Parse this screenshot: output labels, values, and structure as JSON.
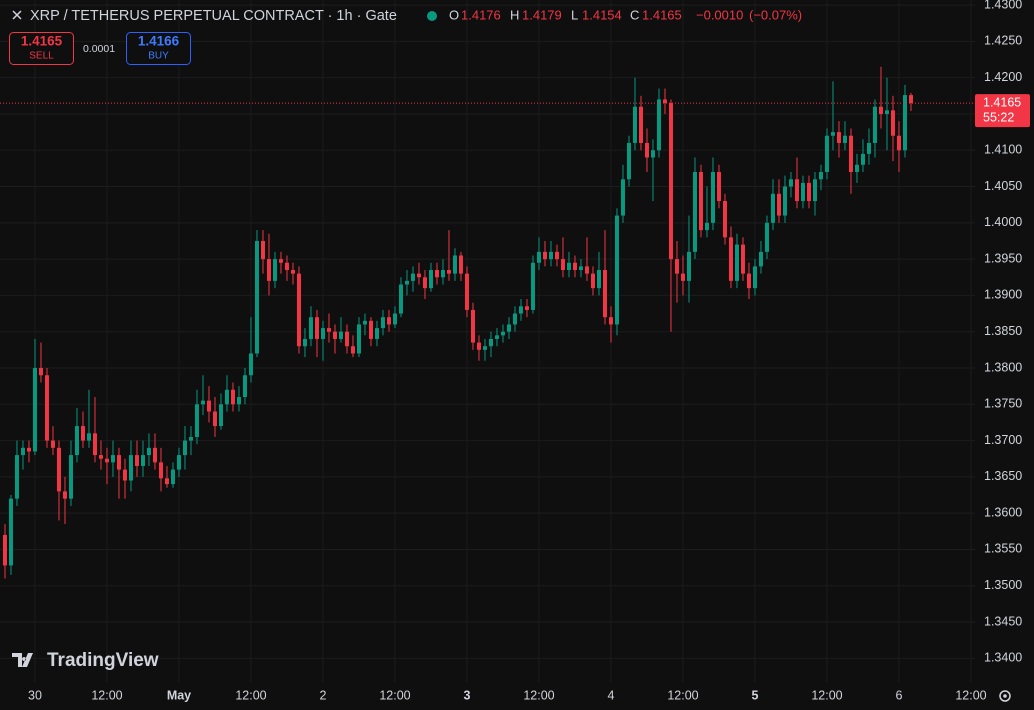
{
  "chart_data": {
    "type": "candlestick",
    "title": "XRP / TETHERUS PERPETUAL CONTRACT · 1h · Gate",
    "ohlc_labels": [
      "O",
      "H",
      "L",
      "C"
    ],
    "change": {
      "value": -0.001,
      "label": "−0.0010"
    },
    "change_percent": {
      "value": -0.07,
      "label": "(−0.07%)"
    },
    "sell": {
      "price": 1.4165,
      "label": "SELL"
    },
    "spread": 0.0001,
    "buy": {
      "price": 1.4166,
      "label": "BUY"
    },
    "countdown": "55:22",
    "watermark": "TradingView",
    "up_color": "#089981",
    "down_color": "#f23645",
    "grid": true,
    "xlim": [
      -0.83,
      161.67
    ],
    "xticks": [
      {
        "value": 5,
        "label": "30"
      },
      {
        "value": 17,
        "label": "12:00"
      },
      {
        "value": 29,
        "label": "May"
      },
      {
        "value": 41,
        "label": "12:00"
      },
      {
        "value": 53,
        "label": "2"
      },
      {
        "value": 65,
        "label": "12:00"
      },
      {
        "value": 77,
        "label": "3"
      },
      {
        "value": 89,
        "label": "12:00"
      },
      {
        "value": 101,
        "label": "4"
      },
      {
        "value": 113,
        "label": "12:00"
      },
      {
        "value": 125,
        "label": "5"
      },
      {
        "value": 137,
        "label": "12:00"
      },
      {
        "value": 149,
        "label": "6"
      },
      {
        "value": 161,
        "label": "12:00"
      }
    ],
    "ylim": [
      1.3366,
      1.4307
    ],
    "yticks": [
      {
        "value": 1.43,
        "label": "1.4300"
      },
      {
        "value": 1.425,
        "label": "1.4250"
      },
      {
        "value": 1.42,
        "label": "1.4200"
      },
      {
        "value": 1.415,
        "label": "1.4150"
      },
      {
        "value": 1.41,
        "label": "1.4100"
      },
      {
        "value": 1.405,
        "label": "1.4050"
      },
      {
        "value": 1.4,
        "label": "1.4000"
      },
      {
        "value": 1.395,
        "label": "1.3950"
      },
      {
        "value": 1.39,
        "label": "1.3900"
      },
      {
        "value": 1.385,
        "label": "1.3850"
      },
      {
        "value": 1.38,
        "label": "1.3800"
      },
      {
        "value": 1.375,
        "label": "1.3750"
      },
      {
        "value": 1.37,
        "label": "1.3700"
      },
      {
        "value": 1.365,
        "label": "1.3650"
      },
      {
        "value": 1.36,
        "label": "1.3600"
      },
      {
        "value": 1.355,
        "label": "1.3550"
      },
      {
        "value": 1.35,
        "label": "1.3500"
      },
      {
        "value": 1.345,
        "label": "1.3450"
      },
      {
        "value": 1.34,
        "label": "1.3400"
      }
    ],
    "ohlc": [
      [
        1.357,
        1.3585,
        1.351,
        1.3528
      ],
      [
        1.3528,
        1.3625,
        1.3515,
        1.362
      ],
      [
        1.362,
        1.37,
        1.361,
        1.368
      ],
      [
        1.368,
        1.37,
        1.366,
        1.369
      ],
      [
        1.369,
        1.37,
        1.367,
        1.3685
      ],
      [
        1.3685,
        1.384,
        1.368,
        1.38
      ],
      [
        1.38,
        1.3835,
        1.378,
        1.379
      ],
      [
        1.379,
        1.38,
        1.369,
        1.37
      ],
      [
        1.37,
        1.372,
        1.368,
        1.369
      ],
      [
        1.369,
        1.37,
        1.359,
        1.363
      ],
      [
        1.363,
        1.365,
        1.3585,
        1.362
      ],
      [
        1.362,
        1.37,
        1.361,
        1.368
      ],
      [
        1.368,
        1.3745,
        1.367,
        1.372
      ],
      [
        1.372,
        1.374,
        1.369,
        1.37
      ],
      [
        1.37,
        1.377,
        1.369,
        1.371
      ],
      [
        1.371,
        1.376,
        1.367,
        1.368
      ],
      [
        1.368,
        1.37,
        1.366,
        1.3675
      ],
      [
        1.3675,
        1.369,
        1.364,
        1.367
      ],
      [
        1.367,
        1.37,
        1.365,
        1.368
      ],
      [
        1.368,
        1.369,
        1.362,
        1.366
      ],
      [
        1.366,
        1.3675,
        1.362,
        1.3645
      ],
      [
        1.3645,
        1.37,
        1.363,
        1.368
      ],
      [
        1.368,
        1.37,
        1.365,
        1.3665
      ],
      [
        1.3665,
        1.37,
        1.365,
        1.368
      ],
      [
        1.368,
        1.371,
        1.3665,
        1.369
      ],
      [
        1.369,
        1.371,
        1.366,
        1.367
      ],
      [
        1.367,
        1.369,
        1.363,
        1.3648
      ],
      [
        1.3648,
        1.3665,
        1.3635,
        1.364
      ],
      [
        1.364,
        1.367,
        1.3635,
        1.366
      ],
      [
        1.366,
        1.369,
        1.365,
        1.368
      ],
      [
        1.368,
        1.372,
        1.366,
        1.37
      ],
      [
        1.37,
        1.372,
        1.368,
        1.3705
      ],
      [
        1.3705,
        1.377,
        1.3695,
        1.375
      ],
      [
        1.375,
        1.379,
        1.3735,
        1.3755
      ],
      [
        1.3755,
        1.3775,
        1.3725,
        1.374
      ],
      [
        1.374,
        1.376,
        1.3705,
        1.372
      ],
      [
        1.372,
        1.3765,
        1.3715,
        1.375
      ],
      [
        1.375,
        1.379,
        1.374,
        1.377
      ],
      [
        1.377,
        1.378,
        1.374,
        1.375
      ],
      [
        1.375,
        1.3775,
        1.374,
        1.376
      ],
      [
        1.376,
        1.38,
        1.375,
        1.379
      ],
      [
        1.379,
        1.387,
        1.378,
        1.382
      ],
      [
        1.382,
        1.399,
        1.3815,
        1.3975
      ],
      [
        1.3975,
        1.399,
        1.393,
        1.395
      ],
      [
        1.395,
        1.3985,
        1.39,
        1.392
      ],
      [
        1.392,
        1.396,
        1.391,
        1.395
      ],
      [
        1.395,
        1.396,
        1.393,
        1.3945
      ],
      [
        1.3945,
        1.3955,
        1.392,
        1.3935
      ],
      [
        1.3935,
        1.3945,
        1.3915,
        1.393
      ],
      [
        1.393,
        1.394,
        1.382,
        1.383
      ],
      [
        1.383,
        1.3855,
        1.3815,
        1.384
      ],
      [
        1.384,
        1.3885,
        1.383,
        1.387
      ],
      [
        1.387,
        1.388,
        1.3815,
        1.384
      ],
      [
        1.384,
        1.3865,
        1.381,
        1.3855
      ],
      [
        1.3855,
        1.3875,
        1.3835,
        1.385
      ],
      [
        1.385,
        1.386,
        1.382,
        1.384
      ],
      [
        1.384,
        1.387,
        1.3835,
        1.385
      ],
      [
        1.385,
        1.386,
        1.382,
        1.383
      ],
      [
        1.383,
        1.3845,
        1.3815,
        1.382
      ],
      [
        1.382,
        1.387,
        1.3815,
        1.386
      ],
      [
        1.386,
        1.3875,
        1.3845,
        1.3865
      ],
      [
        1.3865,
        1.387,
        1.383,
        1.384
      ],
      [
        1.384,
        1.3865,
        1.383,
        1.3855
      ],
      [
        1.3855,
        1.388,
        1.3845,
        1.387
      ],
      [
        1.387,
        1.388,
        1.385,
        1.386
      ],
      [
        1.386,
        1.3885,
        1.3855,
        1.3875
      ],
      [
        1.3875,
        1.3925,
        1.387,
        1.3915
      ],
      [
        1.3915,
        1.3935,
        1.39,
        1.392
      ],
      [
        1.392,
        1.394,
        1.3905,
        1.393
      ],
      [
        1.393,
        1.3945,
        1.3915,
        1.3925
      ],
      [
        1.3925,
        1.3935,
        1.3895,
        1.391
      ],
      [
        1.391,
        1.3945,
        1.3905,
        1.3935
      ],
      [
        1.3935,
        1.3945,
        1.3915,
        1.3925
      ],
      [
        1.3925,
        1.395,
        1.3915,
        1.3935
      ],
      [
        1.3935,
        1.399,
        1.392,
        1.393
      ],
      [
        1.393,
        1.3965,
        1.392,
        1.3955
      ],
      [
        1.3955,
        1.396,
        1.392,
        1.393
      ],
      [
        1.393,
        1.394,
        1.387,
        1.388
      ],
      [
        1.388,
        1.389,
        1.3825,
        1.3835
      ],
      [
        1.3835,
        1.3845,
        1.381,
        1.3825
      ],
      [
        1.3825,
        1.384,
        1.381,
        1.383
      ],
      [
        1.383,
        1.385,
        1.3815,
        1.384
      ],
      [
        1.384,
        1.3855,
        1.383,
        1.3845
      ],
      [
        1.3845,
        1.386,
        1.3835,
        1.385
      ],
      [
        1.385,
        1.387,
        1.384,
        1.386
      ],
      [
        1.386,
        1.3885,
        1.385,
        1.3875
      ],
      [
        1.3875,
        1.3895,
        1.3865,
        1.3885
      ],
      [
        1.3885,
        1.3895,
        1.387,
        1.388
      ],
      [
        1.388,
        1.3955,
        1.3875,
        1.3945
      ],
      [
        1.3945,
        1.398,
        1.3935,
        1.396
      ],
      [
        1.396,
        1.3975,
        1.394,
        1.395
      ],
      [
        1.395,
        1.3975,
        1.394,
        1.396
      ],
      [
        1.396,
        1.397,
        1.394,
        1.395
      ],
      [
        1.395,
        1.398,
        1.3925,
        1.3935
      ],
      [
        1.3935,
        1.396,
        1.3925,
        1.3945
      ],
      [
        1.3945,
        1.3955,
        1.3925,
        1.3935
      ],
      [
        1.3935,
        1.395,
        1.3925,
        1.394
      ],
      [
        1.394,
        1.398,
        1.392,
        1.393
      ],
      [
        1.393,
        1.394,
        1.39,
        1.391
      ],
      [
        1.391,
        1.396,
        1.39,
        1.3935
      ],
      [
        1.3935,
        1.399,
        1.386,
        1.387
      ],
      [
        1.387,
        1.3885,
        1.3835,
        1.386
      ],
      [
        1.386,
        1.402,
        1.3845,
        1.401
      ],
      [
        1.401,
        1.408,
        1.4,
        1.406
      ],
      [
        1.406,
        1.412,
        1.405,
        1.411
      ],
      [
        1.411,
        1.42,
        1.41,
        1.416
      ],
      [
        1.416,
        1.4175,
        1.41,
        1.411
      ],
      [
        1.411,
        1.413,
        1.407,
        1.409
      ],
      [
        1.409,
        1.4115,
        1.403,
        1.41
      ],
      [
        1.41,
        1.4185,
        1.409,
        1.417
      ],
      [
        1.417,
        1.4185,
        1.415,
        1.4165
      ],
      [
        1.4165,
        1.417,
        1.385,
        1.395
      ],
      [
        1.395,
        1.3975,
        1.389,
        1.393
      ],
      [
        1.393,
        1.3955,
        1.39,
        1.392
      ],
      [
        1.392,
        1.401,
        1.389,
        1.396
      ],
      [
        1.396,
        1.409,
        1.395,
        1.407
      ],
      [
        1.407,
        1.408,
        1.398,
        1.399
      ],
      [
        1.399,
        1.405,
        1.398,
        1.4
      ],
      [
        1.4,
        1.409,
        1.399,
        1.407
      ],
      [
        1.407,
        1.408,
        1.402,
        1.403
      ],
      [
        1.403,
        1.404,
        1.397,
        1.398
      ],
      [
        1.398,
        1.3995,
        1.391,
        1.392
      ],
      [
        1.392,
        1.3985,
        1.391,
        1.397
      ],
      [
        1.397,
        1.398,
        1.392,
        1.393
      ],
      [
        1.393,
        1.3945,
        1.3895,
        1.391
      ],
      [
        1.391,
        1.395,
        1.39,
        1.394
      ],
      [
        1.394,
        1.3975,
        1.393,
        1.396
      ],
      [
        1.396,
        1.401,
        1.395,
        1.4
      ],
      [
        1.4,
        1.406,
        1.399,
        1.404
      ],
      [
        1.404,
        1.406,
        1.4,
        1.401
      ],
      [
        1.401,
        1.4065,
        1.4,
        1.405
      ],
      [
        1.405,
        1.407,
        1.4035,
        1.406
      ],
      [
        1.406,
        1.409,
        1.402,
        1.403
      ],
      [
        1.403,
        1.4065,
        1.402,
        1.4055
      ],
      [
        1.4055,
        1.4065,
        1.402,
        1.403
      ],
      [
        1.403,
        1.407,
        1.401,
        1.406
      ],
      [
        1.406,
        1.408,
        1.4045,
        1.407
      ],
      [
        1.407,
        1.413,
        1.406,
        1.412
      ],
      [
        1.412,
        1.4195,
        1.41,
        1.4125
      ],
      [
        1.4125,
        1.414,
        1.409,
        1.411
      ],
      [
        1.411,
        1.414,
        1.41,
        1.412
      ],
      [
        1.412,
        1.413,
        1.404,
        1.407
      ],
      [
        1.407,
        1.4095,
        1.4055,
        1.408
      ],
      [
        1.408,
        1.4115,
        1.407,
        1.4095
      ],
      [
        1.4095,
        1.413,
        1.408,
        1.411
      ],
      [
        1.411,
        1.417,
        1.409,
        1.416
      ],
      [
        1.416,
        1.4215,
        1.413,
        1.415
      ],
      [
        1.415,
        1.42,
        1.41,
        1.4155
      ],
      [
        1.4155,
        1.4175,
        1.4085,
        1.412
      ],
      [
        1.412,
        1.414,
        1.407,
        1.41
      ],
      [
        1.41,
        1.419,
        1.409,
        1.4176
      ],
      [
        1.4176,
        1.4179,
        1.4154,
        1.4165
      ]
    ]
  }
}
